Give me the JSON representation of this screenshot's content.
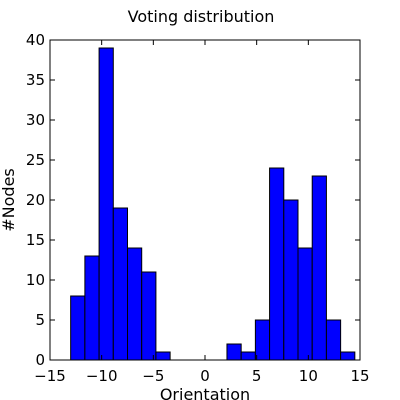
{
  "chart_data": {
    "type": "bar",
    "title": "Voting distribution",
    "xlabel": "Orientation",
    "ylabel": "#Nodes",
    "xlim": [
      -15,
      15
    ],
    "ylim": [
      0,
      40
    ],
    "xticks": [
      -15,
      -10,
      -5,
      0,
      5,
      10,
      15
    ],
    "yticks": [
      0,
      5,
      10,
      15,
      20,
      25,
      30,
      35,
      40
    ],
    "xtick_labels": [
      "−15",
      "−10",
      "−5",
      "0",
      "5",
      "10",
      "15"
    ],
    "ytick_labels": [
      "0",
      "5",
      "10",
      "15",
      "20",
      "25",
      "30",
      "35",
      "40"
    ],
    "bin_width": 1.375,
    "bar_color": "#0000ff",
    "grid": false,
    "series": [
      {
        "bins": [
          {
            "x0": -13.0,
            "x1": -11.625,
            "value": 8
          },
          {
            "x0": -11.625,
            "x1": -10.25,
            "value": 13
          },
          {
            "x0": -10.25,
            "x1": -8.875,
            "value": 39
          },
          {
            "x0": -8.875,
            "x1": -7.5,
            "value": 19
          },
          {
            "x0": -7.5,
            "x1": -6.125,
            "value": 14
          },
          {
            "x0": -6.125,
            "x1": -4.75,
            "value": 11
          },
          {
            "x0": -4.75,
            "x1": -3.375,
            "value": 1
          },
          {
            "x0": -3.375,
            "x1": -2.0,
            "value": 0
          },
          {
            "x0": -2.0,
            "x1": -0.625,
            "value": 0
          },
          {
            "x0": -0.625,
            "x1": 0.75,
            "value": 0
          },
          {
            "x0": 0.75,
            "x1": 2.125,
            "value": 0
          },
          {
            "x0": 2.125,
            "x1": 3.5,
            "value": 2
          },
          {
            "x0": 3.5,
            "x1": 4.875,
            "value": 1
          },
          {
            "x0": 4.875,
            "x1": 6.25,
            "value": 5
          },
          {
            "x0": 6.25,
            "x1": 7.625,
            "value": 24
          },
          {
            "x0": 7.625,
            "x1": 9.0,
            "value": 20
          },
          {
            "x0": 9.0,
            "x1": 10.375,
            "value": 14
          },
          {
            "x0": 10.375,
            "x1": 11.75,
            "value": 23
          },
          {
            "x0": 11.75,
            "x1": 13.125,
            "value": 5
          },
          {
            "x0": 13.125,
            "x1": 14.5,
            "value": 1
          }
        ]
      }
    ]
  }
}
